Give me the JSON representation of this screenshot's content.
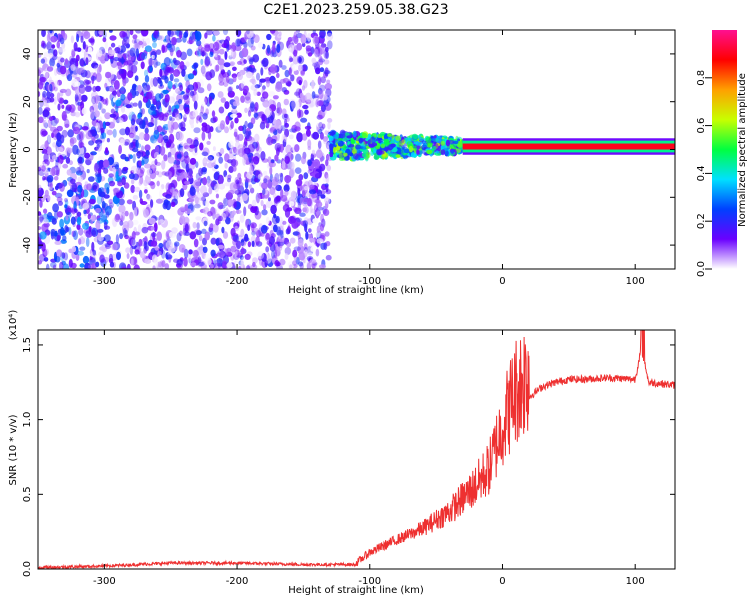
{
  "figure_title": "C2E1.2023.259.05.38.G23",
  "chart_data": [
    {
      "type": "heatmap",
      "xlabel": "Height of straight line (km)",
      "ylabel": "Frequency (Hz)",
      "xlim": [
        -350,
        130
      ],
      "ylim": [
        -50,
        50
      ],
      "xticks": [
        -300,
        -200,
        -100,
        0,
        100
      ],
      "xtick_labels": [
        "-300",
        "-200",
        "-100",
        "0",
        "100"
      ],
      "yticks": [
        -40,
        -20,
        0,
        20,
        40
      ],
      "ytick_labels": [
        "-40",
        "-20",
        "0",
        "20",
        "40"
      ],
      "colorbar": {
        "label": "Normalized spectral amplitude",
        "range": [
          0,
          1
        ],
        "ticks": [
          0.0,
          0.2,
          0.4,
          0.6,
          0.8
        ],
        "tick_labels": [
          "0.0",
          "0.2",
          "0.4",
          "0.6",
          "0.8"
        ],
        "colors": [
          "#ffffff",
          "#6a00ff",
          "#0040ff",
          "#00e0ff",
          "#00ff40",
          "#c8ff00",
          "#ffa000",
          "#ff0000",
          "#ff1090"
        ]
      },
      "regions": [
        {
          "x": [
            -350,
            -130
          ],
          "y": [
            -50,
            50
          ],
          "description_level": 0.15
        },
        {
          "x": [
            -130,
            -30
          ],
          "y": [
            -8,
            8
          ],
          "description_level": 0.4
        },
        {
          "x": [
            -30,
            130
          ],
          "y": [
            0,
            2.5
          ],
          "description_level": 0.9
        }
      ],
      "grid": false
    },
    {
      "type": "line",
      "xlabel": "Height of straight line (km)",
      "ylabel": "SNR (10 * v/v)",
      "y_multiplier": "(x10⁴)",
      "xlim": [
        -350,
        130
      ],
      "ylim": [
        0,
        1.6
      ],
      "xticks": [
        -300,
        -200,
        -100,
        0,
        100
      ],
      "xtick_labels": [
        "-300",
        "-200",
        "-100",
        "0",
        "100"
      ],
      "yticks": [
        0.0,
        0.5,
        1.0,
        1.5
      ],
      "ytick_labels": [
        "0.0",
        "0.5",
        "1.0",
        "1.5"
      ],
      "series_color": "#ee3030",
      "series": [
        {
          "x": [
            -350,
            -300,
            -250,
            -200,
            -150,
            -110,
            -100,
            -80,
            -60,
            -40,
            -20,
            -10,
            0,
            10,
            20,
            30,
            40,
            50,
            60,
            80,
            100,
            105,
            110,
            120,
            130
          ],
          "values": [
            0.01,
            0.02,
            0.04,
            0.04,
            0.03,
            0.03,
            0.1,
            0.18,
            0.25,
            0.35,
            0.5,
            0.6,
            0.85,
            1.05,
            1.15,
            1.22,
            1.25,
            1.27,
            1.27,
            1.28,
            1.27,
            1.5,
            1.25,
            1.24,
            1.23
          ]
        }
      ],
      "grid": false
    }
  ]
}
